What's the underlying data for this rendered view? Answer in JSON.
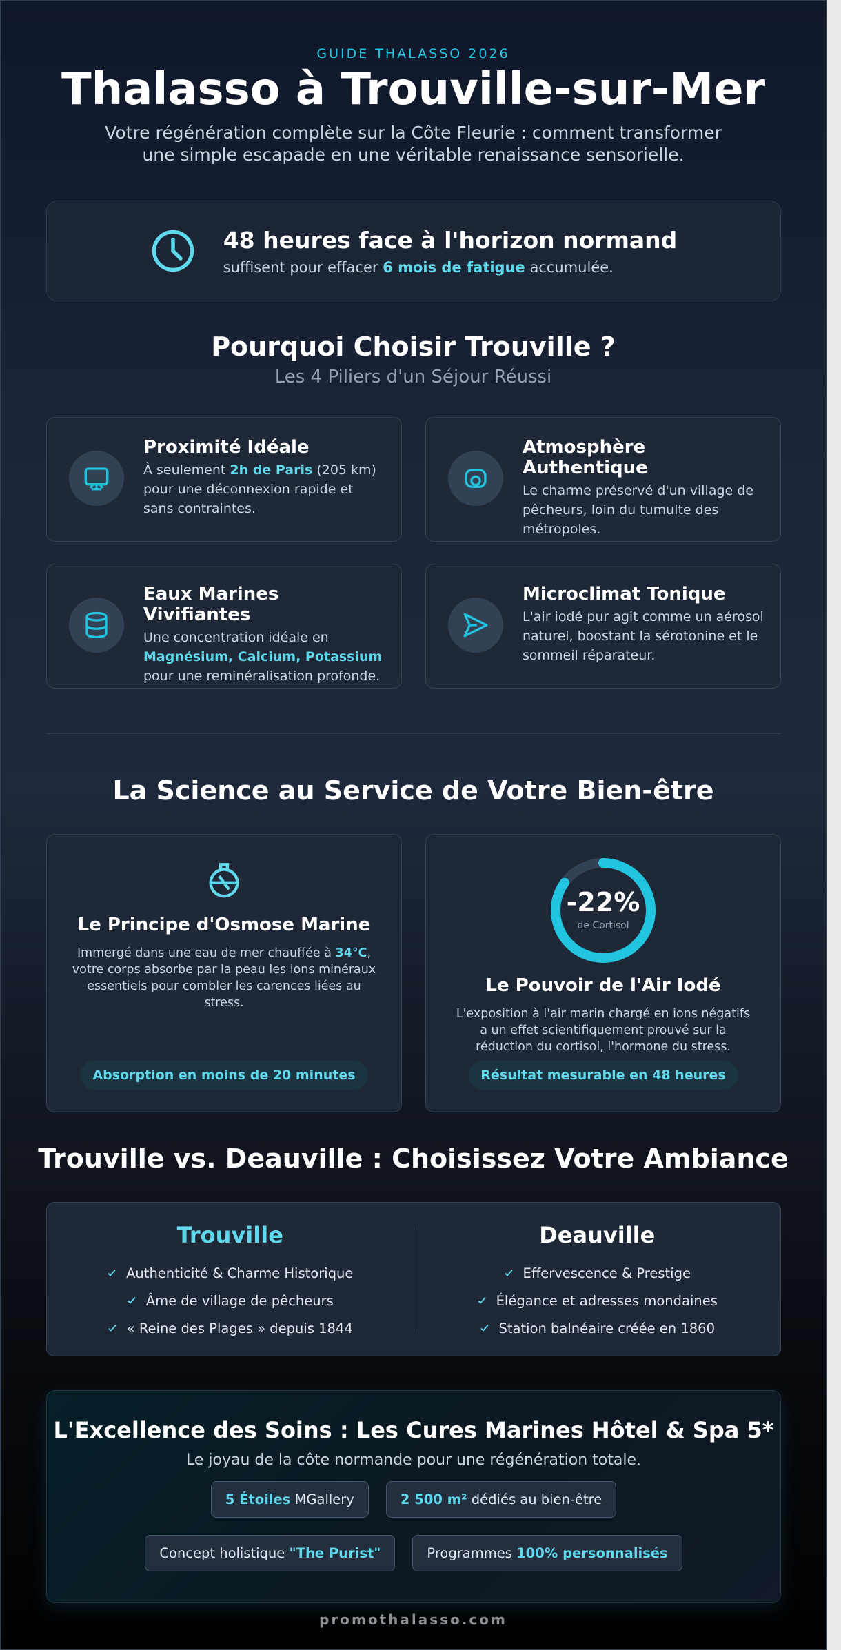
{
  "header": {
    "kicker": "GUIDE THALASSO 2026",
    "title": "Thalasso à Trouville-sur-Mer",
    "subtitle": "Votre régénération complète sur la Côte Fleurie : comment transformer une simple escapade en une véritable renaissance sensorielle."
  },
  "highlight": {
    "title": "48 heures face à l'horizon normand",
    "text": [
      "suffisent pour effacer ",
      {
        "text": "6 mois de fatigue",
        "strong": true
      },
      " accumulée."
    ]
  },
  "pillars": {
    "title": "Pourquoi Choisir Trouville ?",
    "subtitle": "Les 4 Piliers d'un Séjour Réussi",
    "cards": [
      {
        "title": "Proximité Idéale",
        "text": [
          "À seulement ",
          {
            "text": "2h de Paris",
            "strong": true
          },
          " (205 km) pour une déconnexion rapide et sans contraintes."
        ]
      },
      {
        "title": "Atmosphère Authentique",
        "text": [
          "Le charme préservé d'un village de pêcheurs, loin du tumulte des métropoles."
        ]
      },
      {
        "title": "Eaux Marines Vivifiantes",
        "text": [
          "Une concentration idéale en ",
          {
            "text": "Magnésium, Calcium, Potassium",
            "strong": true
          },
          " pour une reminéralisation profonde."
        ]
      },
      {
        "title": "Microclimat Tonique",
        "text": [
          "L'air iodé pur agit comme un aérosol naturel, boostant la sérotonine et le sommeil réparateur."
        ]
      }
    ]
  },
  "science": {
    "title": "La Science au Service de Votre Bien-être",
    "cards": [
      {
        "title": "Le Principe d'Osmose Marine",
        "text": [
          "Immergé dans une eau de mer chauffée à ",
          {
            "text": "34°C",
            "strong": true
          },
          ", votre corps absorbe par la peau les ions minéraux essentiels pour combler les carences liées au stress."
        ],
        "badge": "Absorption en moins de 20 minutes"
      },
      {
        "stat": "-22%",
        "stat_label": "de Cortisol",
        "title": "Le Pouvoir de l'Air Iodé",
        "text": [
          "L'exposition à l'air marin chargé en ions négatifs a un effet scientifiquement prouvé sur la réduction du cortisol, l'hormone du stress."
        ],
        "badge": "Résultat mesurable en 48 heures"
      }
    ]
  },
  "compare": {
    "title": "Trouville vs. Deauville : Choisissez Votre Ambiance",
    "columns": [
      {
        "name": "Trouville",
        "items": [
          "Authenticité & Charme Historique",
          "Âme de village de pêcheurs",
          "« Reine des Plages » depuis 1844"
        ]
      },
      {
        "name": "Deauville",
        "items": [
          "Effervescence & Prestige",
          "Élégance et adresses mondaines",
          "Station balnéaire créée en 1860"
        ]
      }
    ]
  },
  "excellence": {
    "title": "L'Excellence des Soins : Les Cures Marines Hôtel & Spa 5*",
    "subtitle": "Le joyau de la côte normande pour une régénération totale.",
    "chips": [
      [
        {
          "text": "5 Étoiles",
          "strong": true
        },
        " MGallery"
      ],
      [
        {
          "text": "2 500 m²",
          "strong": true
        },
        " dédiés au bien-être"
      ],
      [
        "Concept holistique ",
        {
          "text": "\"The Purist\"",
          "strong": true
        }
      ],
      [
        "Programmes ",
        {
          "text": "100% personnalisés",
          "strong": true
        }
      ]
    ]
  },
  "footer": {
    "site": "promothalasso.com"
  }
}
